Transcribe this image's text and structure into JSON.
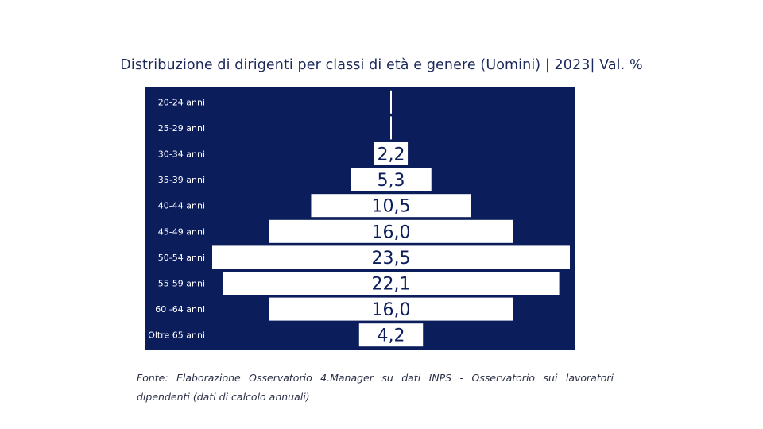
{
  "chart_data": {
    "type": "bar",
    "orientation": "horizontal-centered",
    "title": "Distribuzione di dirigenti per classi di età e genere (Uomini) | 2023| Val. %",
    "categories": [
      "20-24 anni",
      "25-29 anni",
      "30-34 anni",
      "35-39 anni",
      "40-44 anni",
      "45-49 anni",
      "50-54 anni",
      "55-59 anni",
      "60 -64 anni",
      "Oltre 65 anni"
    ],
    "values": [
      0.0,
      0.1,
      2.2,
      5.3,
      10.5,
      16.0,
      23.5,
      22.1,
      16.0,
      4.2
    ],
    "data_labels": [
      "",
      "",
      "2,2",
      "5,3",
      "10,5",
      "16,0",
      "23,5",
      "22,1",
      "16,0",
      "4,2"
    ],
    "xlim": [
      0,
      23.5
    ],
    "legend": "none",
    "grid": false,
    "colors": {
      "background": "#0c1d5c",
      "bar": "#ffffff",
      "label_text": "#0c1d5c",
      "category_text": "#ffffff"
    }
  },
  "source": "Fonte: Elaborazione Osservatorio 4.Manager su dati INPS - Osservatorio sui lavoratori dipendenti (dati di calcolo annuali)"
}
